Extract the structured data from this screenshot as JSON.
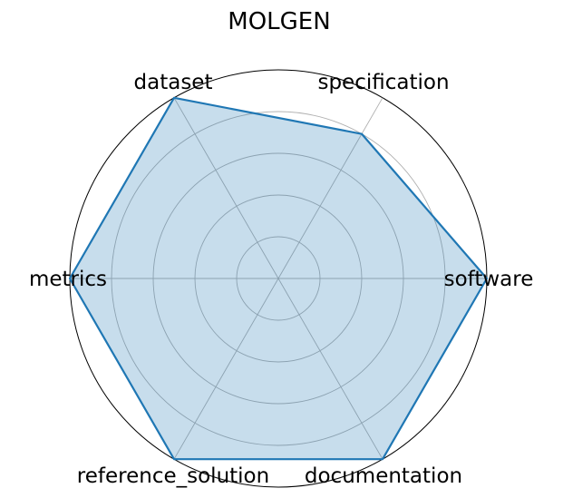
{
  "chart_data": {
    "type": "radar",
    "title": "MOLGEN",
    "categories": [
      "software",
      "specification",
      "dataset",
      "metrics",
      "reference_solution",
      "documentation"
    ],
    "values": [
      1.0,
      0.8,
      1.0,
      1.0,
      1.0,
      1.0
    ],
    "rlim": [
      0,
      1
    ],
    "grid_levels": [
      0.2,
      0.4,
      0.6,
      0.8,
      1.0
    ],
    "grid": true,
    "colors": {
      "line": "#1f77b4",
      "fill": "#1f77b4",
      "grid": "#b0b0b0"
    }
  }
}
